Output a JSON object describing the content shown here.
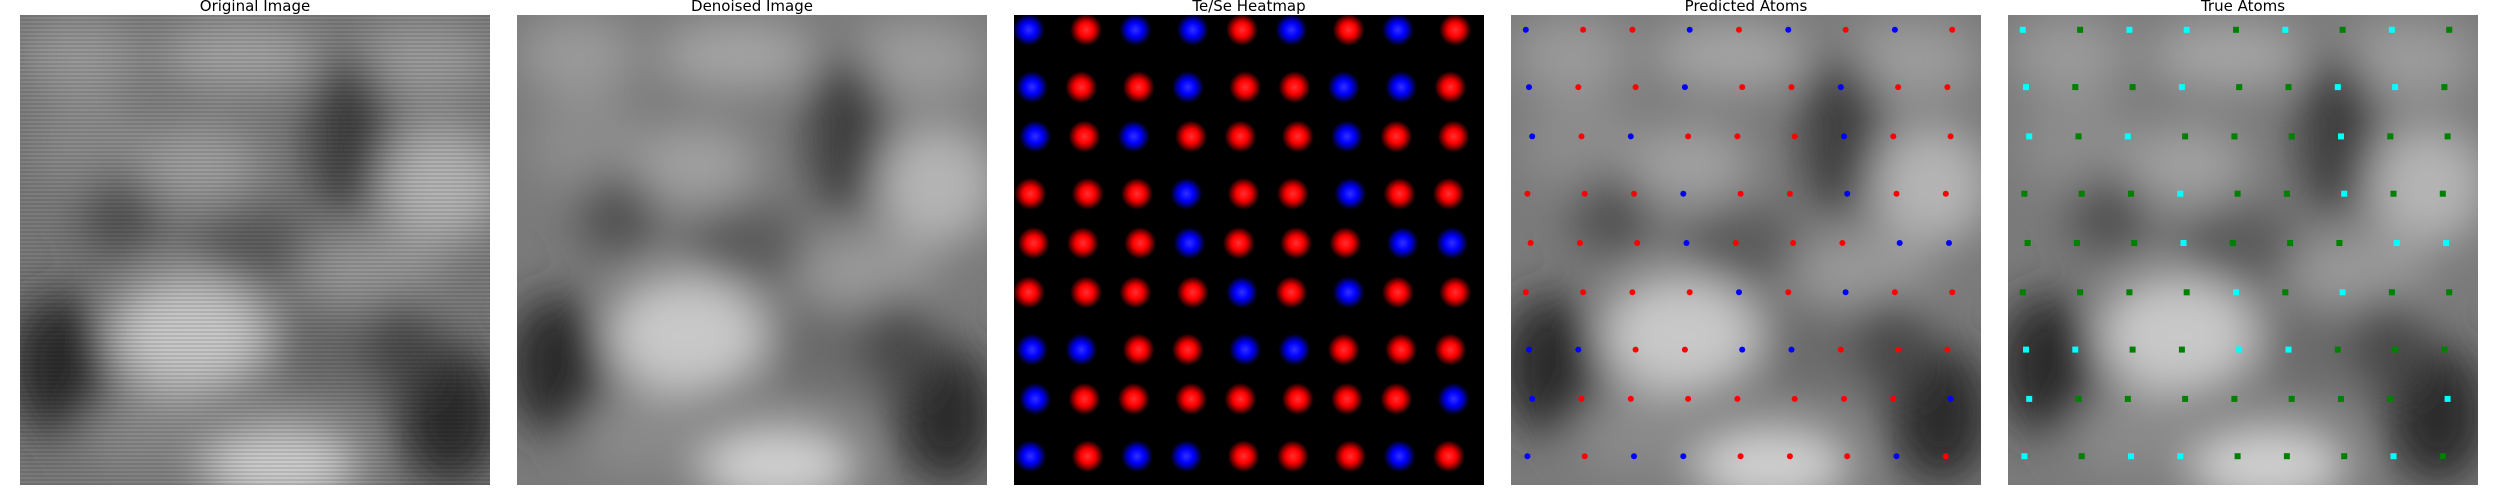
{
  "panels": {
    "original": {
      "title": "Original Image"
    },
    "denoised": {
      "title": "Denoised Image"
    },
    "heatmap": {
      "title": "Te/Se Heatmap"
    },
    "predicted": {
      "title": "Predicted Atoms"
    },
    "true": {
      "title": "True Atoms"
    }
  },
  "colors": {
    "te": "#ff0000",
    "se": "#0000ff",
    "true_te": "#008000",
    "true_se": "#00ffff",
    "background": "#000000"
  },
  "heatmap_grid": [
    [
      "se",
      "te",
      "se",
      "se",
      "te",
      "se",
      "te",
      "se",
      "te"
    ],
    [
      "se",
      "te",
      "te",
      "se",
      "te",
      "te",
      "se",
      "se",
      "te"
    ],
    [
      "se",
      "te",
      "se",
      "te",
      "te",
      "te",
      "se",
      "te",
      "te"
    ],
    [
      "te",
      "te",
      "te",
      "se",
      "te",
      "te",
      "se",
      "te",
      "te"
    ],
    [
      "te",
      "te",
      "te",
      "se",
      "te",
      "te",
      "te",
      "se",
      "se"
    ],
    [
      "te",
      "te",
      "te",
      "te",
      "se",
      "te",
      "se",
      "te",
      "te"
    ],
    [
      "se",
      "se",
      "te",
      "te",
      "se",
      "se",
      "te",
      "te",
      "te"
    ],
    [
      "se",
      "te",
      "te",
      "te",
      "te",
      "te",
      "te",
      "te",
      "se"
    ],
    [
      "se",
      "te",
      "se",
      "se",
      "te",
      "te",
      "te",
      "se",
      "te"
    ]
  ],
  "predicted_grid": [
    [
      "se",
      "te",
      "te",
      "se",
      "te",
      "se",
      "te",
      "se",
      "te"
    ],
    [
      "se",
      "te",
      "te",
      "se",
      "te",
      "te",
      "se",
      "te",
      "te"
    ],
    [
      "se",
      "te",
      "se",
      "te",
      "te",
      "te",
      "se",
      "te",
      "te"
    ],
    [
      "te",
      "te",
      "te",
      "se",
      "te",
      "te",
      "se",
      "te",
      "te"
    ],
    [
      "te",
      "te",
      "te",
      "se",
      "te",
      "te",
      "te",
      "se",
      "se"
    ],
    [
      "te",
      "te",
      "te",
      "te",
      "se",
      "te",
      "se",
      "te",
      "te"
    ],
    [
      "se",
      "se",
      "te",
      "te",
      "se",
      "se",
      "te",
      "te",
      "te"
    ],
    [
      "se",
      "te",
      "te",
      "te",
      "te",
      "te",
      "te",
      "te",
      "se"
    ],
    [
      "se",
      "te",
      "se",
      "se",
      "te",
      "te",
      "te",
      "se",
      "te"
    ]
  ],
  "true_grid": [
    [
      "se",
      "te",
      "se",
      "se",
      "te",
      "se",
      "te",
      "se",
      "te"
    ],
    [
      "se",
      "te",
      "te",
      "se",
      "te",
      "te",
      "se",
      "se",
      "te"
    ],
    [
      "se",
      "te",
      "se",
      "te",
      "te",
      "te",
      "se",
      "te",
      "te"
    ],
    [
      "te",
      "te",
      "te",
      "se",
      "te",
      "te",
      "se",
      "te",
      "te"
    ],
    [
      "te",
      "te",
      "te",
      "se",
      "te",
      "te",
      "te",
      "se",
      "se"
    ],
    [
      "te",
      "te",
      "te",
      "te",
      "se",
      "te",
      "se",
      "te",
      "te"
    ],
    [
      "se",
      "se",
      "te",
      "te",
      "se",
      "se",
      "te",
      "te",
      "te"
    ],
    [
      "se",
      "te",
      "te",
      "te",
      "te",
      "te",
      "te",
      "te",
      "se"
    ],
    [
      "se",
      "te",
      "se",
      "se",
      "te",
      "te",
      "te",
      "se",
      "te"
    ]
  ]
}
